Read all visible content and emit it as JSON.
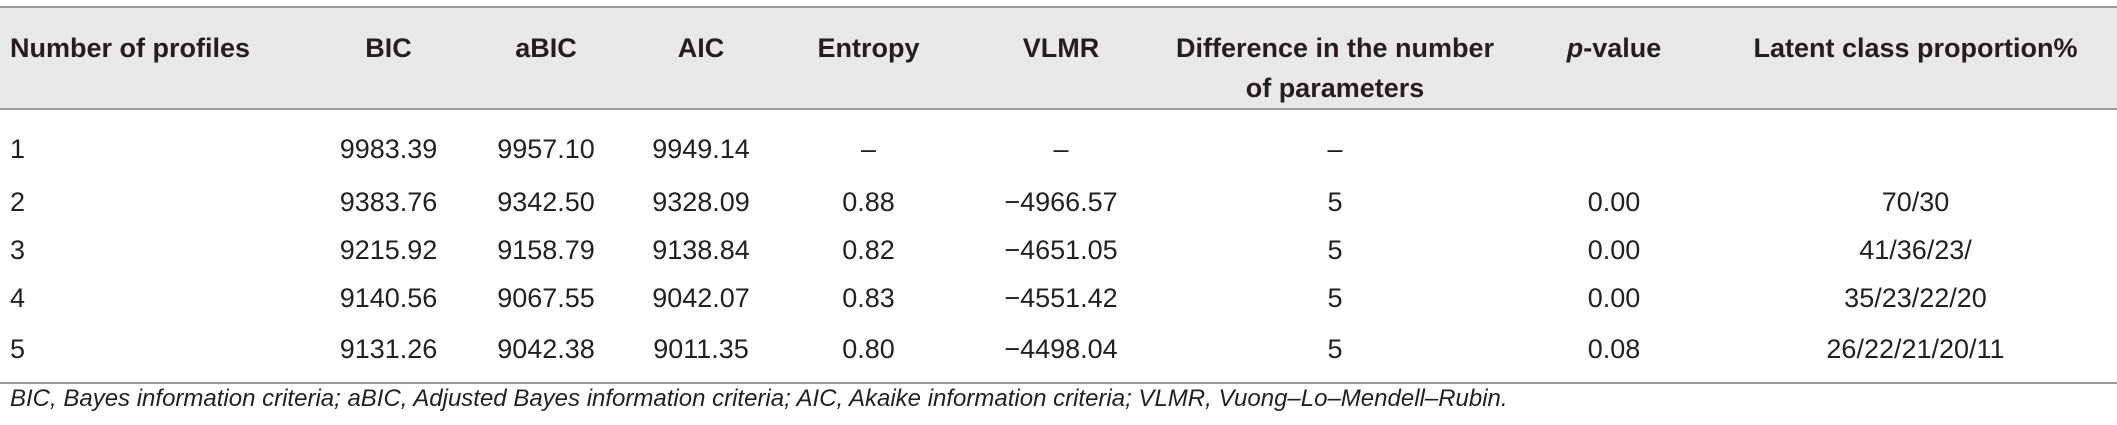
{
  "table": {
    "headers": {
      "profiles": "Number of profiles",
      "bic": "BIC",
      "abic": "aBIC",
      "aic": "AIC",
      "entropy": "Entropy",
      "vlmr": "VLMR",
      "diff_line1": "Difference in the number",
      "diff_line2": "of parameters",
      "pvalue_italic": "p",
      "pvalue_rest": "-value",
      "proportion": "Latent class proportion%"
    },
    "rows": [
      {
        "profiles": "1",
        "bic": "9983.39",
        "abic": "9957.10",
        "aic": "9949.14",
        "entropy": "–",
        "vlmr": "–",
        "diff": "–",
        "pvalue": "",
        "proportion": ""
      },
      {
        "profiles": "2",
        "bic": "9383.76",
        "abic": "9342.50",
        "aic": "9328.09",
        "entropy": "0.88",
        "vlmr": "−4966.57",
        "diff": "5",
        "pvalue": "0.00",
        "proportion": "70/30"
      },
      {
        "profiles": "3",
        "bic": "9215.92",
        "abic": "9158.79",
        "aic": "9138.84",
        "entropy": "0.82",
        "vlmr": "−4651.05",
        "diff": "5",
        "pvalue": "0.00",
        "proportion": "41/36/23/"
      },
      {
        "profiles": "4",
        "bic": "9140.56",
        "abic": "9067.55",
        "aic": "9042.07",
        "entropy": "0.83",
        "vlmr": "−4551.42",
        "diff": "5",
        "pvalue": "0.00",
        "proportion": "35/23/22/20"
      },
      {
        "profiles": "5",
        "bic": "9131.26",
        "abic": "9042.38",
        "aic": "9011.35",
        "entropy": "0.80",
        "vlmr": "−4498.04",
        "diff": "5",
        "pvalue": "0.08",
        "proportion": "26/22/21/20/11"
      }
    ]
  },
  "footnote": "BIC, Bayes information criteria; aBIC, Adjusted Bayes information criteria; AIC, Akaike information criteria; VLMR, Vuong–Lo–Mendell–Rubin."
}
